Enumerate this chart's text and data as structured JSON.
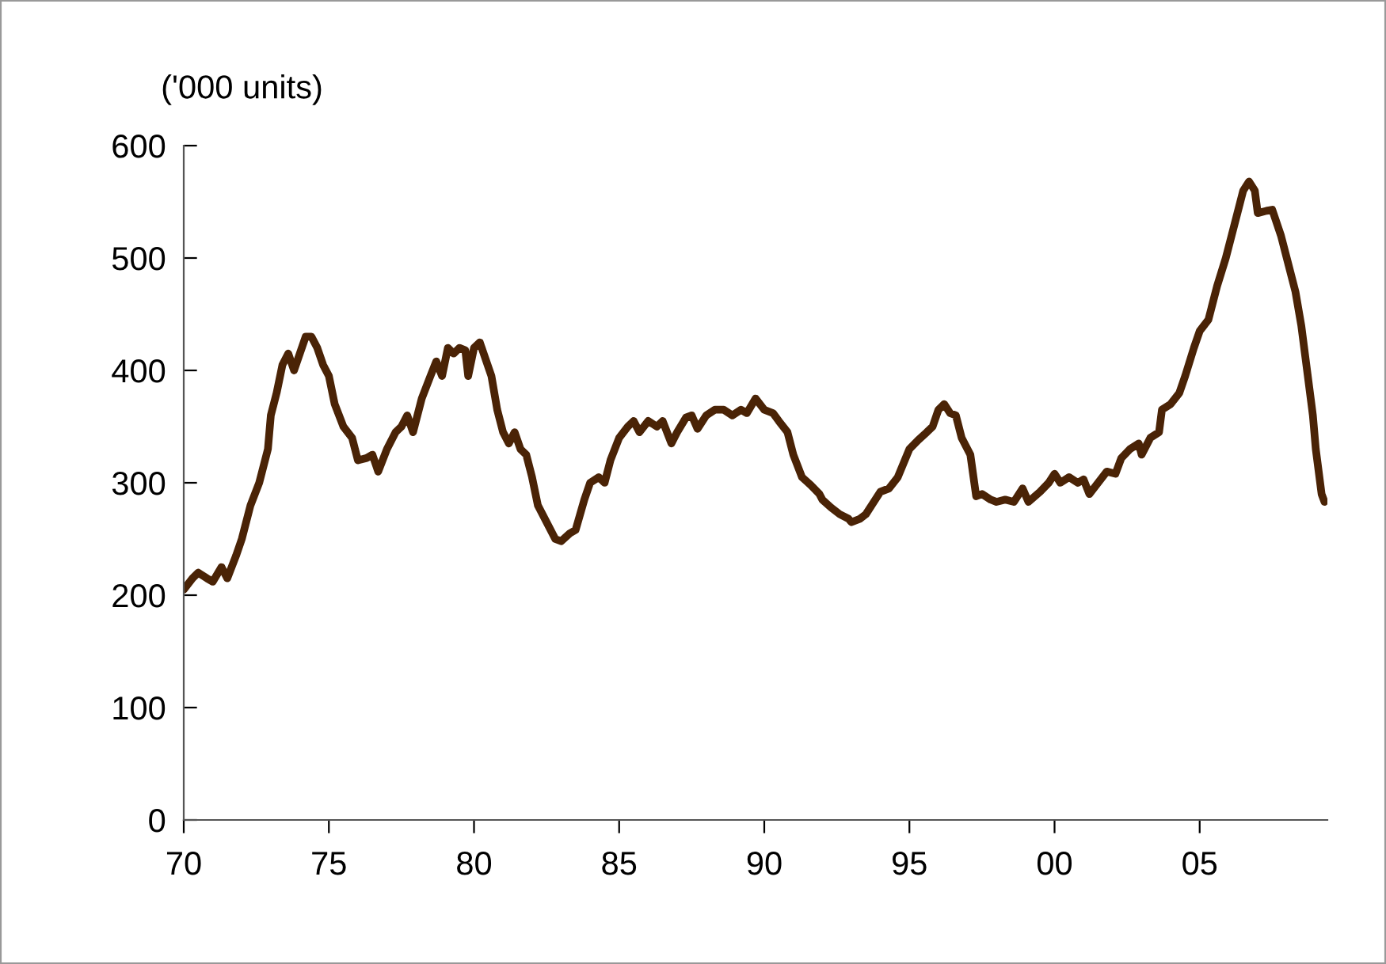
{
  "chart_data": {
    "type": "line",
    "ylabel": "('000 units)",
    "x": [
      1970.0,
      1970.3,
      1970.5,
      1970.8,
      1971.0,
      1971.3,
      1971.5,
      1971.8,
      1972.0,
      1972.3,
      1972.6,
      1972.9,
      1973.0,
      1973.2,
      1973.4,
      1973.6,
      1973.8,
      1974.0,
      1974.2,
      1974.4,
      1974.6,
      1974.8,
      1975.0,
      1975.2,
      1975.5,
      1975.8,
      1976.0,
      1976.3,
      1976.5,
      1976.7,
      1977.0,
      1977.3,
      1977.5,
      1977.7,
      1977.9,
      1978.2,
      1978.5,
      1978.7,
      1978.9,
      1979.1,
      1979.3,
      1979.5,
      1979.7,
      1979.8,
      1980.0,
      1980.2,
      1980.4,
      1980.6,
      1980.8,
      1981.0,
      1981.2,
      1981.4,
      1981.6,
      1981.8,
      1982.0,
      1982.2,
      1982.5,
      1982.8,
      1983.0,
      1983.3,
      1983.5,
      1983.8,
      1984.0,
      1984.3,
      1984.5,
      1984.7,
      1985.0,
      1985.3,
      1985.5,
      1985.7,
      1986.0,
      1986.3,
      1986.5,
      1986.8,
      1987.0,
      1987.3,
      1987.5,
      1987.7,
      1988.0,
      1988.3,
      1988.6,
      1988.9,
      1989.2,
      1989.4,
      1989.7,
      1990.0,
      1990.3,
      1990.5,
      1990.8,
      1991.0,
      1991.3,
      1991.6,
      1991.9,
      1992.0,
      1992.3,
      1992.6,
      1992.9,
      1993.0,
      1993.3,
      1993.5,
      1993.7,
      1994.0,
      1994.3,
      1994.6,
      1995.0,
      1995.3,
      1995.6,
      1995.8,
      1996.0,
      1996.2,
      1996.4,
      1996.6,
      1996.8,
      1997.1,
      1997.3,
      1997.5,
      1997.8,
      1998.0,
      1998.3,
      1998.6,
      1998.9,
      1999.1,
      1999.5,
      1999.8,
      2000.0,
      2000.2,
      2000.5,
      2000.8,
      2001.0,
      2001.2,
      2001.5,
      2001.8,
      2002.1,
      2002.3,
      2002.6,
      2002.9,
      2003.0,
      2003.3,
      2003.6,
      2003.7,
      2004.0,
      2004.3,
      2004.5,
      2004.8,
      2005.0,
      2005.3,
      2005.6,
      2005.9,
      2006.1,
      2006.3,
      2006.5,
      2006.7,
      2006.9,
      2007.0,
      2007.3,
      2007.5,
      2007.8,
      2008.0,
      2008.3,
      2008.5,
      2008.7,
      2008.9,
      2009.0,
      2009.2,
      2009.3
    ],
    "series": [
      {
        "color": "#4a2306",
        "values": [
          205,
          215,
          220,
          215,
          212,
          225,
          215,
          235,
          250,
          280,
          300,
          330,
          360,
          380,
          405,
          415,
          400,
          415,
          430,
          430,
          420,
          405,
          395,
          370,
          350,
          340,
          320,
          322,
          325,
          310,
          330,
          345,
          350,
          360,
          345,
          375,
          395,
          408,
          395,
          420,
          415,
          420,
          418,
          395,
          420,
          425,
          410,
          395,
          365,
          345,
          335,
          345,
          330,
          325,
          305,
          280,
          265,
          250,
          248,
          255,
          258,
          285,
          300,
          305,
          300,
          320,
          340,
          350,
          355,
          345,
          355,
          350,
          355,
          335,
          345,
          358,
          360,
          348,
          360,
          365,
          365,
          360,
          365,
          362,
          375,
          365,
          362,
          355,
          345,
          325,
          305,
          298,
          290,
          285,
          278,
          272,
          268,
          265,
          268,
          272,
          280,
          292,
          295,
          305,
          330,
          338,
          345,
          350,
          365,
          370,
          362,
          360,
          340,
          325,
          288,
          290,
          285,
          283,
          285,
          283,
          295,
          283,
          292,
          300,
          308,
          300,
          305,
          300,
          303,
          290,
          300,
          310,
          308,
          322,
          330,
          335,
          325,
          340,
          345,
          365,
          370,
          380,
          395,
          420,
          435,
          445,
          475,
          500,
          520,
          540,
          560,
          568,
          560,
          540,
          542,
          543,
          520,
          500,
          470,
          440,
          400,
          360,
          330,
          290,
          283
        ]
      }
    ],
    "xlim": [
      1970,
      2009.4
    ],
    "xticks": [
      {
        "value": 1970,
        "label": "70"
      },
      {
        "value": 1975,
        "label": "75"
      },
      {
        "value": 1980,
        "label": "80"
      },
      {
        "value": 1985,
        "label": "85"
      },
      {
        "value": 1990,
        "label": "90"
      },
      {
        "value": 1995,
        "label": "95"
      },
      {
        "value": 2000,
        "label": "00"
      },
      {
        "value": 2005,
        "label": "05"
      }
    ],
    "ylim": [
      0,
      600
    ],
    "yticks": [
      0,
      100,
      200,
      300,
      400,
      500,
      600
    ],
    "grid": false,
    "legend": false,
    "line_style": "solid",
    "marker": "none"
  }
}
